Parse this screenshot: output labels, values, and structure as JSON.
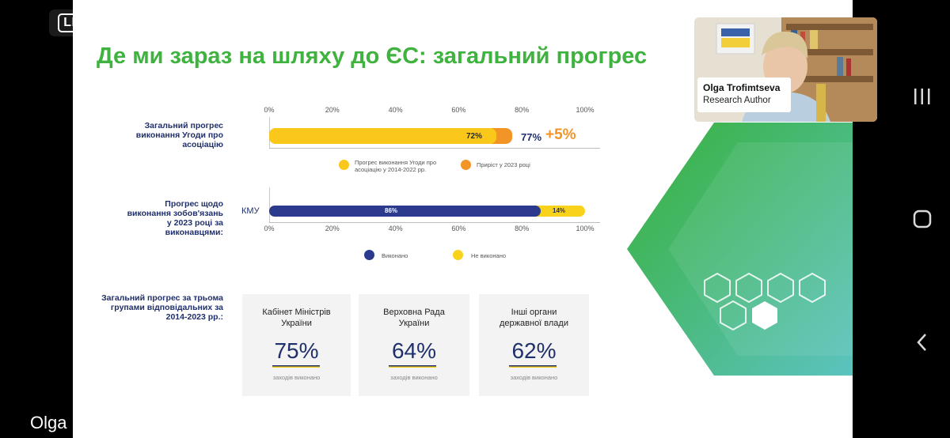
{
  "stream": {
    "live_label": "LIVE",
    "bottom_name": "Olga"
  },
  "slide": {
    "title": "Де ми зараз на шляху до ЄС: загальний прогрес",
    "axis_ticks": [
      "0%",
      "20%",
      "40%",
      "60%",
      "80%",
      "100%"
    ],
    "chart1": {
      "label": "Загальний прогрес виконання Угоди про асоціацію",
      "inner_value": "72%",
      "total": "77%",
      "increment": "+5%",
      "legend_1": "Прогрес виконання Угоди про асоціацію у 2014-2022 рр.",
      "legend_2": "Приріст у 2023 році",
      "color_main": "#f9c81a",
      "color_add": "#f29426"
    },
    "chart2": {
      "label": "Прогрес щодо виконання зобов'язань у 2023 році за виконавцями:",
      "row_label": "КМУ",
      "done_value": "86%",
      "not_done_value": "14%",
      "legend_done": "Виконано",
      "legend_not_done": "Не виконано",
      "color_done": "#2b3a8c",
      "color_not_done": "#f9d21c"
    },
    "groups_label": "Загальний прогрес за трьома групами відповідальних за 2014-2023 рр.:",
    "cards": [
      {
        "title": "Кабінет Міністрів України",
        "value": "75%",
        "sub": "заходів виконано"
      },
      {
        "title": "Верховна Рада України",
        "value": "64%",
        "sub": "заходів виконано"
      },
      {
        "title": "Інші органи державної влади",
        "value": "62%",
        "sub": "заходів виконано"
      }
    ]
  },
  "webcam": {
    "name": "Olga Trofimtseva",
    "role": "Research Author"
  },
  "chart_data": [
    {
      "type": "bar",
      "categories": [
        "Загальний прогрес виконання Угоди про асоціацію"
      ],
      "series": [
        {
          "name": "Прогрес виконання Угоди про асоціацію у 2014-2022 рр.",
          "values": [
            72
          ]
        },
        {
          "name": "Приріст у 2023 році",
          "values": [
            5
          ]
        }
      ],
      "xlim": [
        0,
        100
      ],
      "stacked": true
    },
    {
      "type": "bar",
      "categories": [
        "КМУ"
      ],
      "series": [
        {
          "name": "Виконано",
          "values": [
            86
          ]
        },
        {
          "name": "Не виконано",
          "values": [
            14
          ]
        }
      ],
      "xlim": [
        0,
        100
      ],
      "stacked": true
    }
  ],
  "icons": {
    "recent": "recent-apps-icon",
    "home": "home-icon",
    "back": "back-icon"
  }
}
